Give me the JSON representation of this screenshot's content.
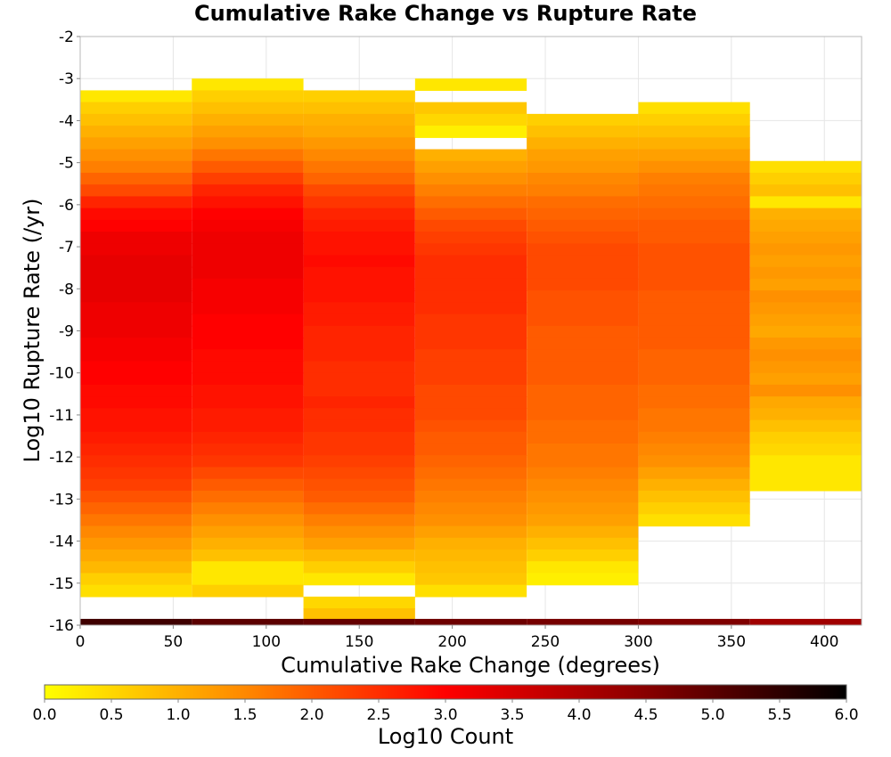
{
  "chart_data": {
    "type": "heatmap",
    "title": "Cumulative Rake Change vs Rupture Rate",
    "xlabel": "Cumulative Rake Change (degrees)",
    "ylabel": "Log10 Rupture Rate (/yr)",
    "xlim": [
      0,
      420
    ],
    "ylim": [
      -16,
      -2
    ],
    "x_ticks": [
      "0",
      "50",
      "100",
      "150",
      "200",
      "250",
      "300",
      "350",
      "400"
    ],
    "y_ticks": [
      "-2",
      "-3",
      "-4",
      "-5",
      "-6",
      "-7",
      "-8",
      "-9",
      "-10",
      "-11",
      "-12",
      "-13",
      "-14",
      "-15",
      "-16"
    ],
    "grid": true,
    "x_bin_width": 60,
    "y_bin_height": 0.28,
    "color_scale": {
      "label": "Log10 Count",
      "min": 0.0,
      "max": 6.0,
      "ticks": [
        "0.0",
        "0.5",
        "1.0",
        "1.5",
        "2.0",
        "2.5",
        "3.0",
        "3.5",
        "4.0",
        "4.5",
        "5.0",
        "5.5",
        "6.0"
      ],
      "stops": [
        "#ffff00",
        "#ff8800",
        "#ff0000",
        "#880000",
        "#000000"
      ]
    },
    "columns": [
      {
        "x_start": 0,
        "y_top": -3.28,
        "values": [
          0.3,
          0.6,
          0.8,
          1.0,
          1.2,
          1.4,
          1.6,
          1.9,
          2.2,
          2.6,
          2.9,
          3.0,
          3.2,
          3.2,
          3.3,
          3.3,
          3.3,
          3.3,
          3.2,
          3.2,
          3.2,
          3.1,
          3.1,
          3.0,
          3.0,
          2.9,
          2.9,
          2.8,
          2.8,
          2.7,
          2.6,
          2.5,
          2.4,
          2.3,
          2.1,
          1.9,
          1.7,
          1.5,
          1.3,
          1.1,
          0.9,
          0.6,
          0.4
        ]
      },
      {
        "x_start": 60,
        "y_top": -3.0,
        "values": [
          0.3,
          0.6,
          0.8,
          1.0,
          1.2,
          1.4,
          1.7,
          2.0,
          2.3,
          2.6,
          2.8,
          3.0,
          3.1,
          3.2,
          3.2,
          3.2,
          3.2,
          3.1,
          3.1,
          3.1,
          3.0,
          3.0,
          3.0,
          2.9,
          2.9,
          2.9,
          2.8,
          2.8,
          2.7,
          2.7,
          2.6,
          2.5,
          2.4,
          2.2,
          2.0,
          1.8,
          1.6,
          1.4,
          1.2,
          1.0,
          0.8,
          0.3,
          0.3,
          0.6
        ]
      },
      {
        "x_start": 120,
        "y_top": -3.28,
        "values": [
          0.6,
          0.8,
          1.0,
          1.1,
          1.3,
          1.5,
          1.7,
          1.9,
          2.2,
          2.4,
          2.6,
          2.7,
          2.8,
          2.8,
          2.9,
          2.8,
          2.8,
          2.8,
          2.7,
          2.7,
          2.6,
          2.6,
          2.6,
          2.5,
          2.5,
          2.5,
          2.6,
          2.5,
          2.5,
          2.4,
          2.4,
          2.3,
          2.2,
          2.1,
          2.0,
          1.8,
          1.6,
          1.4,
          1.2,
          0.9,
          0.6,
          0.3,
          null,
          0.5,
          0.8
        ]
      },
      {
        "x_start": 180,
        "y_top": -3.0,
        "values": [
          0.3,
          null,
          0.7,
          0.5,
          0.2,
          null,
          1.0,
          1.2,
          1.4,
          1.6,
          1.8,
          2.0,
          2.2,
          2.3,
          2.4,
          2.5,
          2.5,
          2.5,
          2.5,
          2.5,
          2.4,
          2.4,
          2.4,
          2.3,
          2.3,
          2.3,
          2.2,
          2.2,
          2.2,
          2.1,
          2.0,
          2.0,
          1.9,
          1.8,
          1.7,
          1.6,
          1.5,
          1.4,
          1.2,
          1.0,
          0.9,
          0.8,
          0.7,
          0.4
        ]
      },
      {
        "x_start": 240,
        "y_top": -3.84,
        "values": [
          0.6,
          0.8,
          1.0,
          1.2,
          1.3,
          1.5,
          1.6,
          1.8,
          1.9,
          2.0,
          2.1,
          2.2,
          2.2,
          2.2,
          2.2,
          2.1,
          2.1,
          2.1,
          2.0,
          2.0,
          2.0,
          2.0,
          2.0,
          1.9,
          1.9,
          1.9,
          1.8,
          1.8,
          1.7,
          1.7,
          1.6,
          1.5,
          1.4,
          1.3,
          1.2,
          1.0,
          0.8,
          0.6,
          0.3,
          0.2
        ]
      },
      {
        "x_start": 300,
        "y_top": -3.56,
        "values": [
          0.4,
          0.6,
          0.8,
          1.0,
          1.2,
          1.4,
          1.6,
          1.7,
          1.8,
          1.9,
          2.0,
          2.0,
          2.1,
          2.1,
          2.1,
          2.1,
          2.0,
          2.0,
          2.0,
          2.0,
          2.0,
          1.9,
          1.9,
          1.9,
          1.8,
          1.8,
          1.7,
          1.7,
          1.6,
          1.5,
          1.4,
          1.2,
          1.0,
          0.8,
          0.6,
          0.4
        ]
      },
      {
        "x_start": 360,
        "y_top": -4.96,
        "values": [
          0.4,
          0.6,
          0.8,
          0.3,
          1.0,
          1.1,
          1.2,
          1.3,
          1.2,
          1.3,
          1.2,
          1.4,
          1.3,
          1.2,
          1.1,
          1.3,
          1.4,
          1.3,
          1.2,
          1.4,
          1.1,
          1.0,
          0.8,
          0.6,
          0.5,
          0.3,
          0.3,
          0.3
        ]
      }
    ],
    "floor_row": {
      "y_top": -15.85,
      "values": [
        5.3,
        5.0,
        4.9,
        4.8,
        4.7,
        4.6,
        4.2
      ]
    }
  }
}
